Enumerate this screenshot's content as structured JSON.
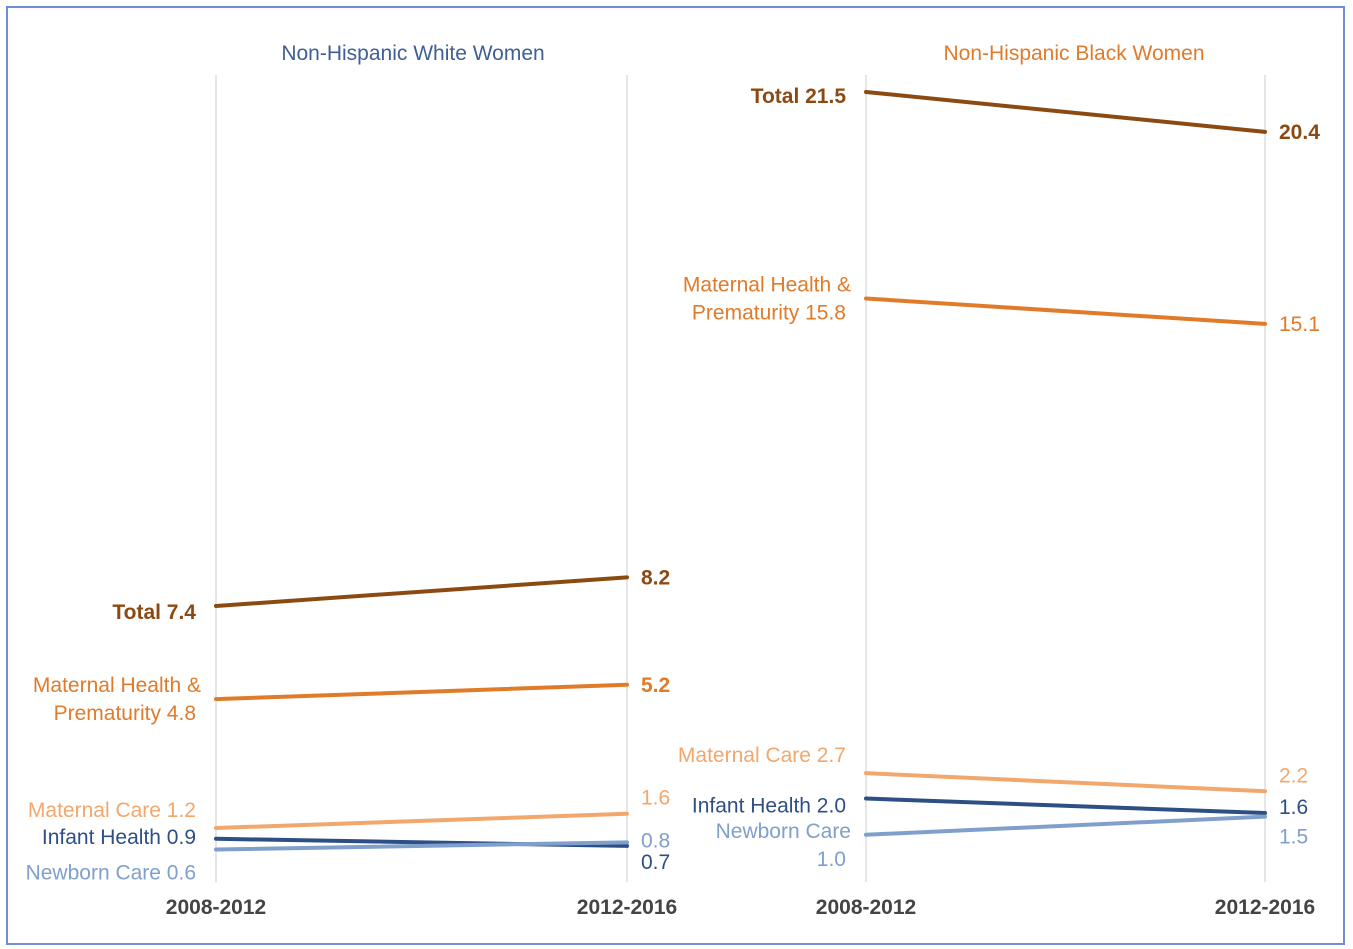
{
  "chart_data": [
    {
      "type": "line",
      "title": "Non-Hispanic White Women",
      "categories": [
        "2008-2012",
        "2012-2016"
      ],
      "series": [
        {
          "name": "Total",
          "values": [
            7.4,
            8.2
          ],
          "start_label": "Total 7.4",
          "end_label": "8.2",
          "color": "#8c4a12",
          "bold": true
        },
        {
          "name": "Maternal Health & Prematurity",
          "values": [
            4.8,
            5.2
          ],
          "start_label": [
            "Maternal Health &",
            "Prematurity 4.8"
          ],
          "end_label": "5.2",
          "color": "#e07b2a",
          "bold": true
        },
        {
          "name": "Maternal Care",
          "values": [
            1.2,
            1.6
          ],
          "start_label": "Maternal Care 1.2",
          "end_label": "1.6",
          "color": "#f2a76c",
          "bold": false
        },
        {
          "name": "Infant Health",
          "values": [
            0.9,
            0.7
          ],
          "start_label": "Infant Health 0.9",
          "end_label": "0.7",
          "color": "#2e4f85",
          "bold": false
        },
        {
          "name": "Newborn Care",
          "values": [
            0.6,
            0.8
          ],
          "start_label": "Newborn Care 0.6",
          "end_label": "0.8",
          "color": "#7fa0cc",
          "bold": false
        }
      ]
    },
    {
      "type": "line",
      "title": "Non-Hispanic Black Women",
      "categories": [
        "2008-2012",
        "2012-2016"
      ],
      "series": [
        {
          "name": "Total",
          "values": [
            21.5,
            20.4
          ],
          "start_label": "Total 21.5",
          "end_label": "20.4",
          "color": "#8c4a12",
          "bold": true
        },
        {
          "name": "Maternal Health & Prematurity",
          "values": [
            15.8,
            15.1
          ],
          "start_label": [
            "Maternal Health &",
            "Prematurity 15.8"
          ],
          "end_label": "15.1",
          "color": "#e07b2a",
          "bold": false
        },
        {
          "name": "Maternal Care",
          "values": [
            2.7,
            2.2
          ],
          "start_label": "Maternal Care 2.7",
          "end_label": "2.2",
          "color": "#f2a76c",
          "bold": false
        },
        {
          "name": "Infant Health",
          "values": [
            2.0,
            1.6
          ],
          "start_label": "Infant Health 2.0",
          "end_label": "1.6",
          "color": "#2e4f85",
          "bold": false
        },
        {
          "name": "Newborn Care",
          "values": [
            1.0,
            1.5
          ],
          "start_label": [
            "Newborn Care",
            "1.0"
          ],
          "end_label": "1.5",
          "color": "#7fa0cc",
          "bold": false
        }
      ]
    }
  ],
  "title_colors": [
    "#3f5f95",
    "#e07b2a"
  ],
  "grid_color": "#dddddd",
  "axis_label_color": "#444444"
}
